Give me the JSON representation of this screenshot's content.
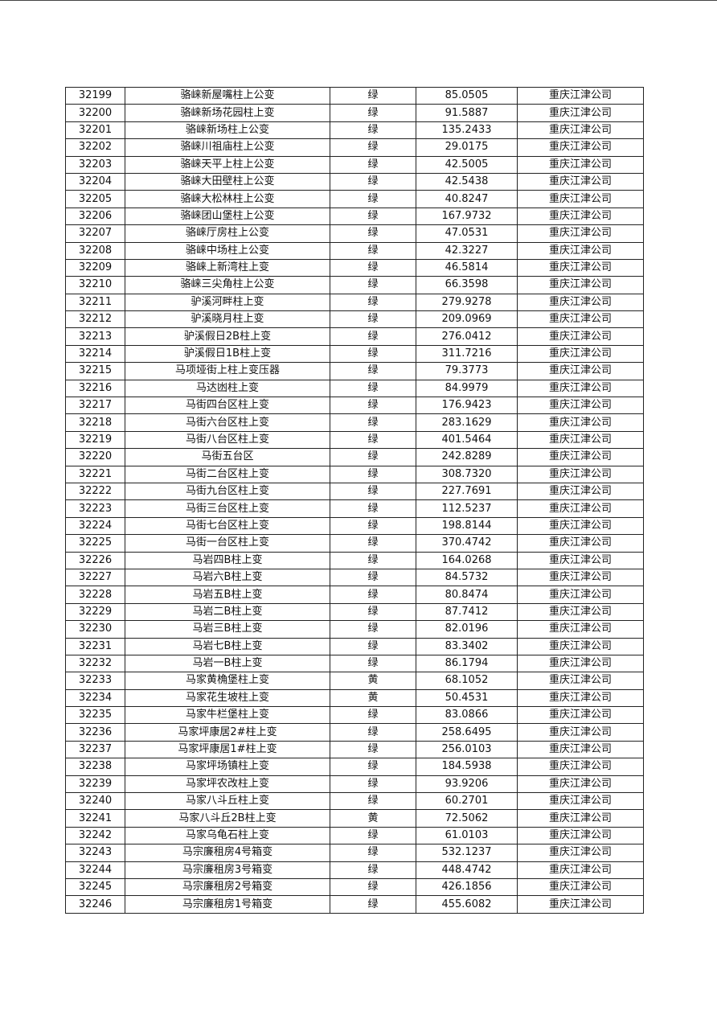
{
  "table": {
    "rows": [
      [
        "32199",
        "骆崃新屋嘴柱上公变",
        "绿",
        "85.0505",
        "重庆江津公司"
      ],
      [
        "32200",
        "骆崃新场花园柱上变",
        "绿",
        "91.5887",
        "重庆江津公司"
      ],
      [
        "32201",
        "骆崃新场柱上公变",
        "绿",
        "135.2433",
        "重庆江津公司"
      ],
      [
        "32202",
        "骆崃川祖庙柱上公变",
        "绿",
        "29.0175",
        "重庆江津公司"
      ],
      [
        "32203",
        "骆崃天平上柱上公变",
        "绿",
        "42.5005",
        "重庆江津公司"
      ],
      [
        "32204",
        "骆崃大田壁柱上公变",
        "绿",
        "42.5438",
        "重庆江津公司"
      ],
      [
        "32205",
        "骆崃大松林柱上公变",
        "绿",
        "40.8247",
        "重庆江津公司"
      ],
      [
        "32206",
        "骆崃团山堡柱上公变",
        "绿",
        "167.9732",
        "重庆江津公司"
      ],
      [
        "32207",
        "骆崃厅房柱上公变",
        "绿",
        "47.0531",
        "重庆江津公司"
      ],
      [
        "32208",
        "骆崃中场柱上公变",
        "绿",
        "42.3227",
        "重庆江津公司"
      ],
      [
        "32209",
        "骆崃上新湾柱上变",
        "绿",
        "46.5814",
        "重庆江津公司"
      ],
      [
        "32210",
        "骆崃三尖角柱上公变",
        "绿",
        "66.3598",
        "重庆江津公司"
      ],
      [
        "32211",
        "驴溪河畔柱上变",
        "绿",
        "279.9278",
        "重庆江津公司"
      ],
      [
        "32212",
        "驴溪晓月柱上变",
        "绿",
        "209.0969",
        "重庆江津公司"
      ],
      [
        "32213",
        "驴溪假日2B柱上变",
        "绿",
        "276.0412",
        "重庆江津公司"
      ],
      [
        "32214",
        "驴溪假日1B柱上变",
        "绿",
        "311.7216",
        "重庆江津公司"
      ],
      [
        "32215",
        "马项垭街上柱上变压器",
        "绿",
        "79.3773",
        "重庆江津公司"
      ],
      [
        "32216",
        "马达凼柱上变",
        "绿",
        "84.9979",
        "重庆江津公司"
      ],
      [
        "32217",
        "马街四台区柱上变",
        "绿",
        "176.9423",
        "重庆江津公司"
      ],
      [
        "32218",
        "马街六台区柱上变",
        "绿",
        "283.1629",
        "重庆江津公司"
      ],
      [
        "32219",
        "马街八台区柱上变",
        "绿",
        "401.5464",
        "重庆江津公司"
      ],
      [
        "32220",
        "马街五台区",
        "绿",
        "242.8289",
        "重庆江津公司"
      ],
      [
        "32221",
        "马街二台区柱上变",
        "绿",
        "308.7320",
        "重庆江津公司"
      ],
      [
        "32222",
        "马街九台区柱上变",
        "绿",
        "227.7691",
        "重庆江津公司"
      ],
      [
        "32223",
        "马街三台区柱上变",
        "绿",
        "112.5237",
        "重庆江津公司"
      ],
      [
        "32224",
        "马街七台区柱上变",
        "绿",
        "198.8144",
        "重庆江津公司"
      ],
      [
        "32225",
        "马街一台区柱上变",
        "绿",
        "370.4742",
        "重庆江津公司"
      ],
      [
        "32226",
        "马岩四B柱上变",
        "绿",
        "164.0268",
        "重庆江津公司"
      ],
      [
        "32227",
        "马岩六B柱上变",
        "绿",
        "84.5732",
        "重庆江津公司"
      ],
      [
        "32228",
        "马岩五B柱上变",
        "绿",
        "80.8474",
        "重庆江津公司"
      ],
      [
        "32229",
        "马岩二B柱上变",
        "绿",
        "87.7412",
        "重庆江津公司"
      ],
      [
        "32230",
        "马岩三B柱上变",
        "绿",
        "82.0196",
        "重庆江津公司"
      ],
      [
        "32231",
        "马岩七B柱上变",
        "绿",
        "83.3402",
        "重庆江津公司"
      ],
      [
        "32232",
        "马岩一B柱上变",
        "绿",
        "86.1794",
        "重庆江津公司"
      ],
      [
        "32233",
        "马家黄桷堡柱上变",
        "黄",
        "68.1052",
        "重庆江津公司"
      ],
      [
        "32234",
        "马家花生坡柱上变",
        "黄",
        "50.4531",
        "重庆江津公司"
      ],
      [
        "32235",
        "马家牛栏堡柱上变",
        "绿",
        "83.0866",
        "重庆江津公司"
      ],
      [
        "32236",
        "马家坪康居2#柱上变",
        "绿",
        "258.6495",
        "重庆江津公司"
      ],
      [
        "32237",
        "马家坪康居1#柱上变",
        "绿",
        "256.0103",
        "重庆江津公司"
      ],
      [
        "32238",
        "马家坪场镇柱上变",
        "绿",
        "184.5938",
        "重庆江津公司"
      ],
      [
        "32239",
        "马家坪农改柱上变",
        "绿",
        "93.9206",
        "重庆江津公司"
      ],
      [
        "32240",
        "马家八斗丘柱上变",
        "绿",
        "60.2701",
        "重庆江津公司"
      ],
      [
        "32241",
        "马家八斗丘2B柱上变",
        "黄",
        "72.5062",
        "重庆江津公司"
      ],
      [
        "32242",
        "马家乌龟石柱上变",
        "绿",
        "61.0103",
        "重庆江津公司"
      ],
      [
        "32243",
        "马宗廉租房4号箱变",
        "绿",
        "532.1237",
        "重庆江津公司"
      ],
      [
        "32244",
        "马宗廉租房3号箱变",
        "绿",
        "448.4742",
        "重庆江津公司"
      ],
      [
        "32245",
        "马宗廉租房2号箱变",
        "绿",
        "426.1856",
        "重庆江津公司"
      ],
      [
        "32246",
        "马宗廉租房1号箱变",
        "绿",
        "455.6082",
        "重庆江津公司"
      ]
    ]
  }
}
